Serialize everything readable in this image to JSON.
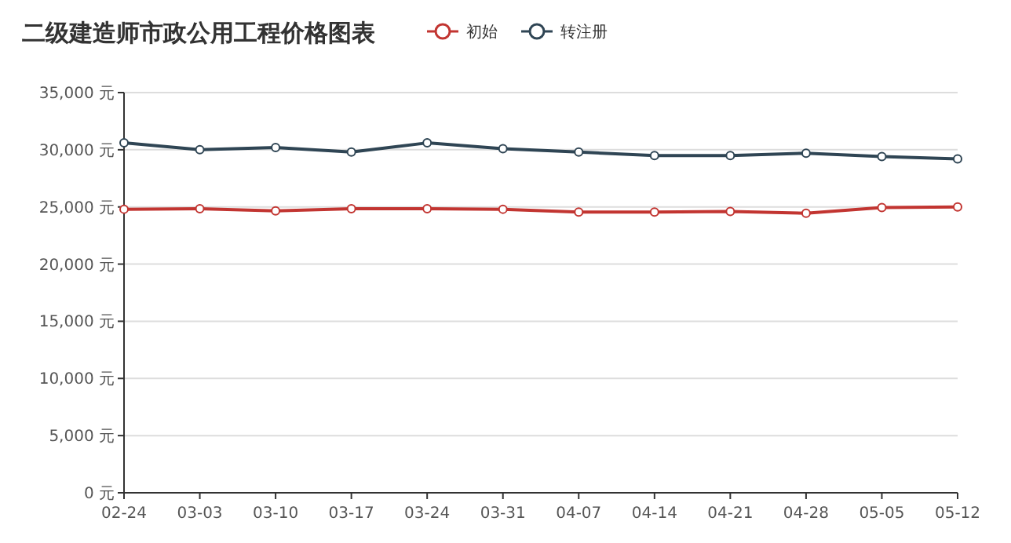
{
  "chart_data": {
    "type": "line",
    "title": "二级建造师市政公用工程价格图表",
    "categories": [
      "02-24",
      "03-03",
      "03-10",
      "03-17",
      "03-24",
      "03-31",
      "04-07",
      "04-14",
      "04-21",
      "04-28",
      "05-05",
      "05-12"
    ],
    "series": [
      {
        "name": "初始",
        "color": "#c23531",
        "values": [
          24800,
          24850,
          24650,
          24850,
          24850,
          24800,
          24550,
          24550,
          24600,
          24450,
          24950,
          25000
        ]
      },
      {
        "name": "转注册",
        "color": "#2f4554",
        "values": [
          30600,
          30000,
          30200,
          29800,
          30600,
          30100,
          29800,
          29500,
          29500,
          29700,
          29400,
          29200
        ]
      }
    ],
    "ylim": [
      0,
      35000
    ],
    "yticks": [
      {
        "value": 0,
        "label": "0 元"
      },
      {
        "value": 5000,
        "label": "5,000 元"
      },
      {
        "value": 10000,
        "label": "10,000 元"
      },
      {
        "value": 15000,
        "label": "15,000 元"
      },
      {
        "value": 20000,
        "label": "20,000 元"
      },
      {
        "value": 25000,
        "label": "25,000 元"
      },
      {
        "value": 30000,
        "label": "30,000 元"
      },
      {
        "value": 35000,
        "label": "35,000 元"
      }
    ],
    "grid": "y",
    "legend": "top",
    "marker": "circle",
    "line_style": "solid"
  }
}
